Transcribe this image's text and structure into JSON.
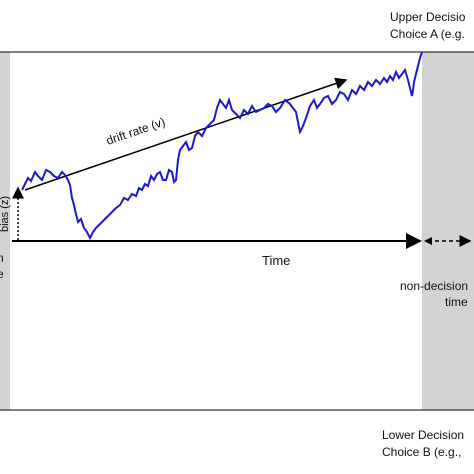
{
  "upper_boundary": {
    "line1": "Upper Decisio",
    "line2": "Choice A (e.g."
  },
  "lower_boundary": {
    "line1": "Lower Decision",
    "line2": "Choice B (e.g.,"
  },
  "drift_label": "drift rate (v)",
  "bias_label": "bias (z)",
  "time_label": "Time",
  "non_decision": {
    "line1": "non-decision",
    "line2": "time"
  },
  "left_cut": {
    "line1": "n",
    "line2": "e"
  }
}
